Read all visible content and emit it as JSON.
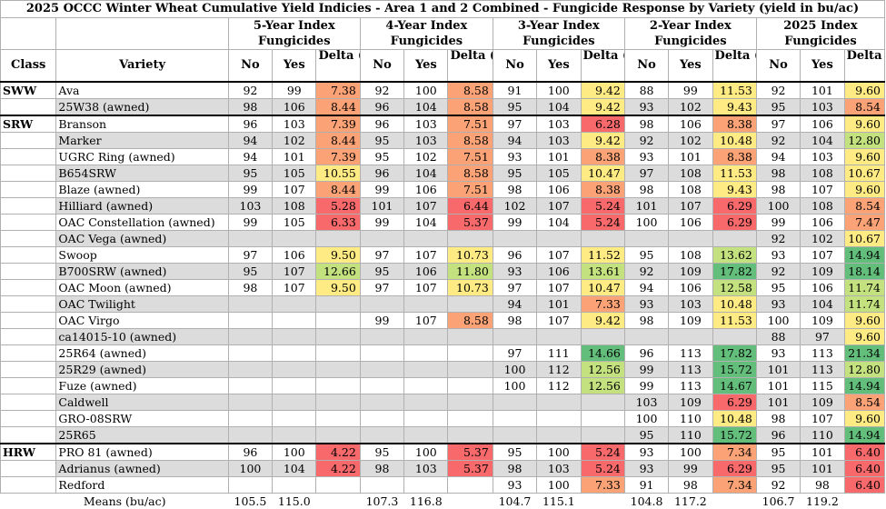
{
  "title": "2025 OCCC Winter Wheat Cumulative Yield Indicies - Area 1 and 2 Combined - Fungicide Response by Variety (yield in bu/ac)",
  "groups": [
    {
      "label": "5-Year Index Fungicides"
    },
    {
      "label": "4-Year Index Fungicides"
    },
    {
      "label": "3-Year Index Fungicides"
    },
    {
      "label": "2-Year Index Fungicides"
    },
    {
      "label": "2025 Index Fungicides"
    }
  ],
  "headers": {
    "class": "Class",
    "variety": "Variety",
    "no": "No",
    "yes": "Yes",
    "delta": "Delta (bu/ac)"
  },
  "colors": {
    "red": "#f8696b",
    "orange": "#fba376",
    "yellow": "#ffeb84",
    "lightgreen": "#c4e17f",
    "green": "#63be7b",
    "gray": "#dcdcdc"
  },
  "rows": [
    {
      "class": "SWW",
      "variety": "Ava",
      "cells": [
        "92",
        "99",
        "7.38",
        "92",
        "100",
        "8.58",
        "91",
        "100",
        "9.42",
        "88",
        "99",
        "11.53",
        "92",
        "101",
        "9.60"
      ]
    },
    {
      "class": "",
      "variety": "25W38 (awned)",
      "cells": [
        "98",
        "106",
        "8.44",
        "96",
        "104",
        "8.58",
        "95",
        "104",
        "9.42",
        "93",
        "102",
        "9.43",
        "95",
        "103",
        "8.54"
      ]
    },
    {
      "class": "SRW",
      "variety": "Branson",
      "cells": [
        "96",
        "103",
        "7.39",
        "96",
        "103",
        "7.51",
        "97",
        "103",
        "6.28",
        "98",
        "106",
        "8.38",
        "97",
        "106",
        "9.60"
      ]
    },
    {
      "class": "",
      "variety": "Marker",
      "cells": [
        "94",
        "102",
        "8.44",
        "95",
        "103",
        "8.58",
        "94",
        "103",
        "9.42",
        "92",
        "102",
        "10.48",
        "92",
        "104",
        "12.80"
      ]
    },
    {
      "class": "",
      "variety": "UGRC Ring (awned)",
      "cells": [
        "94",
        "101",
        "7.39",
        "95",
        "102",
        "7.51",
        "93",
        "101",
        "8.38",
        "93",
        "101",
        "8.38",
        "94",
        "103",
        "9.60"
      ]
    },
    {
      "class": "",
      "variety": "B654SRW",
      "cells": [
        "95",
        "105",
        "10.55",
        "96",
        "104",
        "8.58",
        "95",
        "105",
        "10.47",
        "97",
        "108",
        "11.53",
        "98",
        "108",
        "10.67"
      ]
    },
    {
      "class": "",
      "variety": "Blaze (awned)",
      "cells": [
        "99",
        "107",
        "8.44",
        "99",
        "106",
        "7.51",
        "98",
        "106",
        "8.38",
        "98",
        "108",
        "9.43",
        "98",
        "107",
        "9.60"
      ]
    },
    {
      "class": "",
      "variety": "Hilliard (awned)",
      "cells": [
        "103",
        "108",
        "5.28",
        "101",
        "107",
        "6.44",
        "102",
        "107",
        "5.24",
        "101",
        "107",
        "6.29",
        "100",
        "108",
        "8.54"
      ]
    },
    {
      "class": "",
      "variety": "OAC Constellation (awned)",
      "cells": [
        "99",
        "105",
        "6.33",
        "99",
        "104",
        "5.37",
        "99",
        "104",
        "5.24",
        "100",
        "106",
        "6.29",
        "99",
        "106",
        "7.47"
      ]
    },
    {
      "class": "",
      "variety": "OAC Vega (awned)",
      "cells": [
        "",
        "",
        "",
        "",
        "",
        "",
        "",
        "",
        "",
        "",
        "",
        "",
        "92",
        "102",
        "10.67"
      ]
    },
    {
      "class": "",
      "variety": "Swoop",
      "cells": [
        "97",
        "106",
        "9.50",
        "97",
        "107",
        "10.73",
        "96",
        "107",
        "11.52",
        "95",
        "108",
        "13.62",
        "93",
        "107",
        "14.94"
      ]
    },
    {
      "class": "",
      "variety": "B700SRW (awned)",
      "cells": [
        "95",
        "107",
        "12.66",
        "95",
        "106",
        "11.80",
        "93",
        "106",
        "13.61",
        "92",
        "109",
        "17.82",
        "92",
        "109",
        "18.14"
      ]
    },
    {
      "class": "",
      "variety": "OAC Moon (awned)",
      "cells": [
        "98",
        "107",
        "9.50",
        "97",
        "107",
        "10.73",
        "97",
        "107",
        "10.47",
        "94",
        "106",
        "12.58",
        "95",
        "106",
        "11.74"
      ]
    },
    {
      "class": "",
      "variety": "OAC Twilight",
      "cells": [
        "",
        "",
        "",
        "",
        "",
        "",
        "94",
        "101",
        "7.33",
        "93",
        "103",
        "10.48",
        "93",
        "104",
        "11.74"
      ]
    },
    {
      "class": "",
      "variety": "OAC Virgo",
      "cells": [
        "",
        "",
        "",
        "99",
        "107",
        "8.58",
        "98",
        "107",
        "9.42",
        "98",
        "109",
        "11.53",
        "100",
        "109",
        "9.60"
      ]
    },
    {
      "class": "",
      "variety": "ca14015-10 (awned)",
      "cells": [
        "",
        "",
        "",
        "",
        "",
        "",
        "",
        "",
        "",
        "",
        "",
        "",
        "88",
        "97",
        "9.60"
      ]
    },
    {
      "class": "",
      "variety": "25R64 (awned)",
      "cells": [
        "",
        "",
        "",
        "",
        "",
        "",
        "97",
        "111",
        "14.66",
        "96",
        "113",
        "17.82",
        "93",
        "113",
        "21.34"
      ]
    },
    {
      "class": "",
      "variety": "25R29 (awned)",
      "cells": [
        "",
        "",
        "",
        "",
        "",
        "",
        "100",
        "112",
        "12.56",
        "99",
        "113",
        "15.72",
        "101",
        "113",
        "12.80"
      ]
    },
    {
      "class": "",
      "variety": "Fuze (awned)",
      "cells": [
        "",
        "",
        "",
        "",
        "",
        "",
        "100",
        "112",
        "12.56",
        "99",
        "113",
        "14.67",
        "101",
        "115",
        "14.94"
      ]
    },
    {
      "class": "",
      "variety": "Caldwell",
      "cells": [
        "",
        "",
        "",
        "",
        "",
        "",
        "",
        "",
        "",
        "103",
        "109",
        "6.29",
        "101",
        "109",
        "8.54"
      ]
    },
    {
      "class": "",
      "variety": "GRO-08SRW",
      "cells": [
        "",
        "",
        "",
        "",
        "",
        "",
        "",
        "",
        "",
        "100",
        "110",
        "10.48",
        "98",
        "107",
        "9.60"
      ]
    },
    {
      "class": "",
      "variety": "25R65",
      "cells": [
        "",
        "",
        "",
        "",
        "",
        "",
        "",
        "",
        "",
        "95",
        "110",
        "15.72",
        "96",
        "110",
        "14.94"
      ]
    },
    {
      "class": "HRW",
      "variety": "PRO 81 (awned)",
      "cells": [
        "96",
        "100",
        "4.22",
        "95",
        "100",
        "5.37",
        "95",
        "100",
        "5.24",
        "93",
        "100",
        "7.34",
        "95",
        "101",
        "6.40"
      ]
    },
    {
      "class": "",
      "variety": "Adrianus (awned)",
      "cells": [
        "100",
        "104",
        "4.22",
        "98",
        "103",
        "5.37",
        "98",
        "103",
        "5.24",
        "93",
        "99",
        "6.29",
        "95",
        "101",
        "6.40"
      ]
    },
    {
      "class": "",
      "variety": "Redford",
      "cells": [
        "",
        "",
        "",
        "",
        "",
        "",
        "93",
        "100",
        "7.33",
        "91",
        "98",
        "7.34",
        "92",
        "98",
        "6.40"
      ]
    }
  ],
  "means": {
    "label": "Means (bu/ac)",
    "values": [
      "105.5",
      "115.0",
      "107.3",
      "116.8",
      "104.7",
      "115.1",
      "104.8",
      "117.2",
      "106.7",
      "119.2"
    ]
  }
}
